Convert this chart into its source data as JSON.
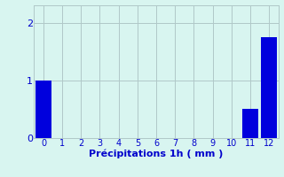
{
  "categories": [
    0,
    1,
    2,
    3,
    4,
    5,
    6,
    7,
    8,
    9,
    10,
    11,
    12
  ],
  "values": [
    1.0,
    0,
    0,
    0,
    0,
    0,
    0,
    0,
    0,
    0,
    0,
    0.5,
    1.75
  ],
  "bar_color": "#0000dd",
  "bg_color": "#d8f5f0",
  "xlabel": "Précipitations 1h ( mm )",
  "ylim": [
    0,
    2.3
  ],
  "xlim": [
    -0.5,
    12.5
  ],
  "yticks": [
    0,
    1,
    2
  ],
  "xticks": [
    0,
    1,
    2,
    3,
    4,
    5,
    6,
    7,
    8,
    9,
    10,
    11,
    12
  ],
  "grid_color": "#b0c8c8",
  "label_color": "#0000cc",
  "bar_width": 0.85,
  "tick_fontsize": 7,
  "xlabel_fontsize": 8
}
